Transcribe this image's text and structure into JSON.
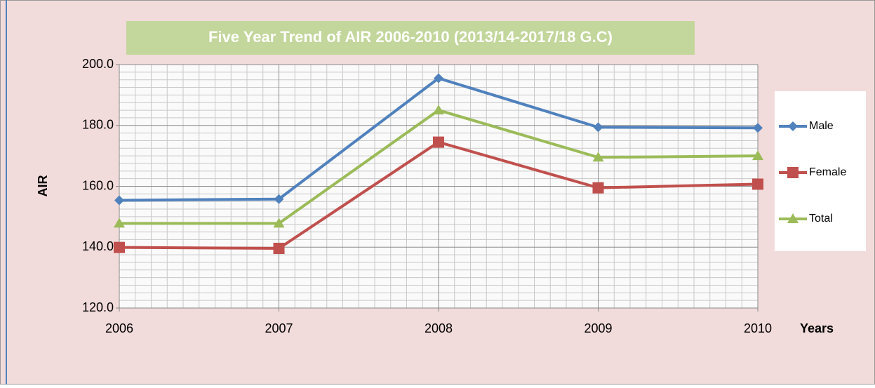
{
  "chart_data": {
    "type": "line",
    "title": "Five Year Trend of AIR 2006-2010 (2013/14-2017/18 G.C)",
    "y_label": "AIR",
    "x_label": "Years",
    "categories": [
      "2006",
      "2007",
      "2008",
      "2009",
      "2010"
    ],
    "series": [
      {
        "name": "Male",
        "color": "#4f81bd",
        "marker": "diamond",
        "values": [
          155.4,
          155.8,
          195.5,
          179.4,
          179.2
        ]
      },
      {
        "name": "Female",
        "color": "#c0504d",
        "marker": "square",
        "values": [
          139.9,
          139.6,
          174.5,
          159.5,
          160.7
        ]
      },
      {
        "name": "Total",
        "color": "#9bbb59",
        "marker": "triangle",
        "values": [
          147.8,
          147.8,
          185.0,
          169.5,
          170.0
        ]
      }
    ],
    "ylim": [
      120,
      200
    ],
    "yticks": [
      {
        "value": 120,
        "label": "120.0"
      },
      {
        "value": 140,
        "label": "140.0"
      },
      {
        "value": 160,
        "label": "160.0"
      },
      {
        "value": 180,
        "label": "180.0"
      },
      {
        "value": 200,
        "label": "200.0"
      }
    ],
    "grid": true,
    "legend": "right"
  }
}
